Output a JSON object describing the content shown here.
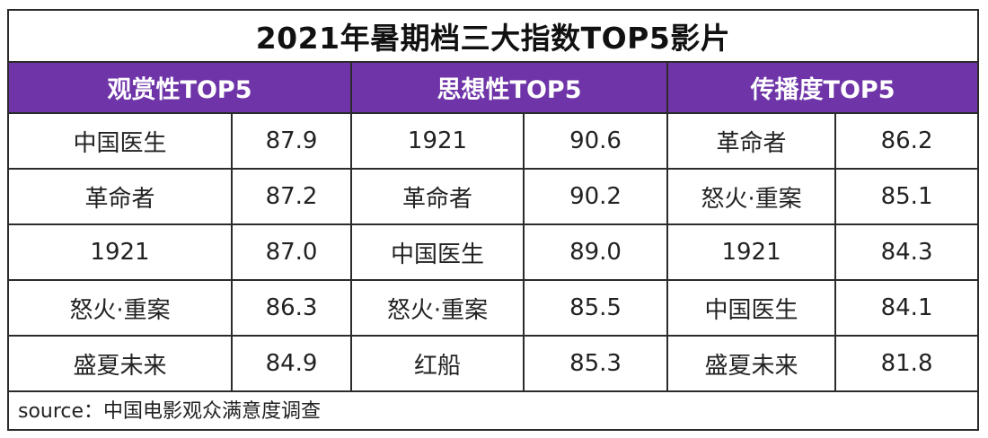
{
  "title": "2021年暑期档三大指数TOP5影片",
  "groups": [
    {
      "header": "观赏性TOP5",
      "rows": [
        {
          "film": "中国医生",
          "score": "87.9"
        },
        {
          "film": "革命者",
          "score": "87.2"
        },
        {
          "film": "1921",
          "score": "87.0"
        },
        {
          "film": "怒火·重案",
          "score": "86.3"
        },
        {
          "film": "盛夏未来",
          "score": "84.9"
        }
      ]
    },
    {
      "header": "思想性TOP5",
      "rows": [
        {
          "film": "1921",
          "score": "90.6"
        },
        {
          "film": "革命者",
          "score": "90.2"
        },
        {
          "film": "中国医生",
          "score": "89.0"
        },
        {
          "film": "怒火·重案",
          "score": "85.5"
        },
        {
          "film": "红船",
          "score": "85.3"
        }
      ]
    },
    {
      "header": "传播度TOP5",
      "rows": [
        {
          "film": "革命者",
          "score": "86.2"
        },
        {
          "film": "怒火·重案",
          "score": "85.1"
        },
        {
          "film": "1921",
          "score": "84.3"
        },
        {
          "film": "中国医生",
          "score": "84.1"
        },
        {
          "film": "盛夏未来",
          "score": "81.8"
        }
      ]
    }
  ],
  "source": "source：中国电影观众满意度调查",
  "colors": {
    "header_bg": "#6f35a8",
    "header_text": "#ffffff",
    "border": "#2b2b2b"
  }
}
